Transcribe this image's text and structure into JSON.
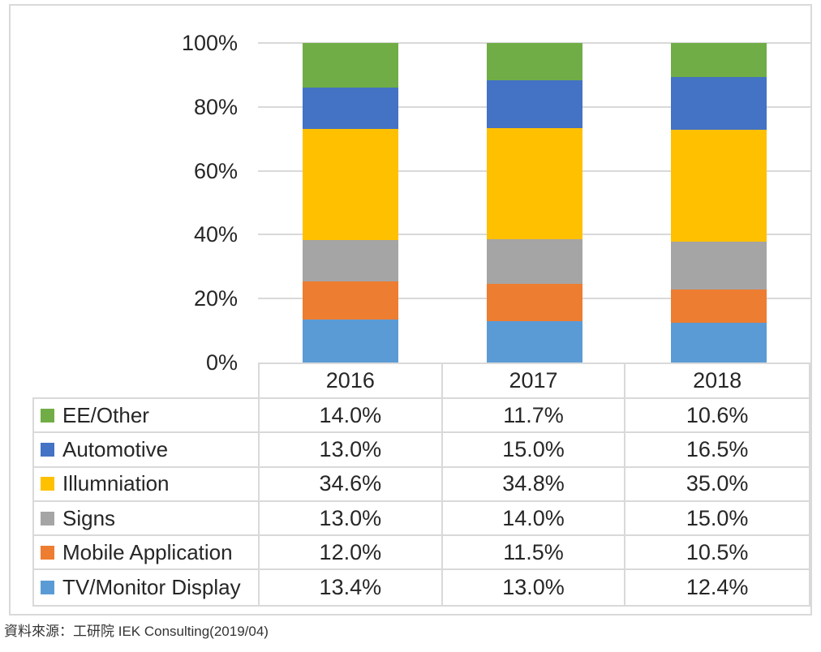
{
  "chart_data": {
    "type": "bar",
    "stacked": true,
    "percent_stacked": true,
    "categories": [
      "2016",
      "2017",
      "2018"
    ],
    "series": [
      {
        "name": "EE/Other",
        "color": "#70AD47",
        "values": [
          14.0,
          11.7,
          10.6
        ],
        "display": [
          "14.0%",
          "11.7%",
          "10.6%"
        ]
      },
      {
        "name": "Automotive",
        "color": "#4472C4",
        "values": [
          13.0,
          15.0,
          16.5
        ],
        "display": [
          "13.0%",
          "15.0%",
          "16.5%"
        ]
      },
      {
        "name": "Illumniation",
        "color": "#FFC000",
        "values": [
          34.6,
          34.8,
          35.0
        ],
        "display": [
          "34.6%",
          "34.8%",
          "35.0%"
        ]
      },
      {
        "name": "Signs",
        "color": "#A5A5A5",
        "values": [
          13.0,
          14.0,
          15.0
        ],
        "display": [
          "13.0%",
          "14.0%",
          "15.0%"
        ]
      },
      {
        "name": "Mobile Application",
        "color": "#ED7D31",
        "values": [
          12.0,
          11.5,
          10.5
        ],
        "display": [
          "12.0%",
          "11.5%",
          "10.5%"
        ]
      },
      {
        "name": "TV/Monitor Display",
        "color": "#5B9BD5",
        "values": [
          13.4,
          13.0,
          12.4
        ],
        "display": [
          "13.4%",
          "13.0%",
          "12.4%"
        ]
      }
    ],
    "stack_order_bottom_to_top": [
      "TV/Monitor Display",
      "Mobile Application",
      "Signs",
      "Illumniation",
      "Automotive",
      "EE/Other"
    ],
    "title": "",
    "xlabel": "",
    "ylabel": "",
    "yticks": [
      "0%",
      "20%",
      "40%",
      "60%",
      "80%",
      "100%"
    ],
    "ylim": [
      0,
      100
    ],
    "grid": true,
    "grid_color": "#D9D9D9",
    "legend_position": "data-table-left"
  },
  "footer": {
    "source": "資料來源：工研院 IEK Consulting(2019/04)"
  }
}
